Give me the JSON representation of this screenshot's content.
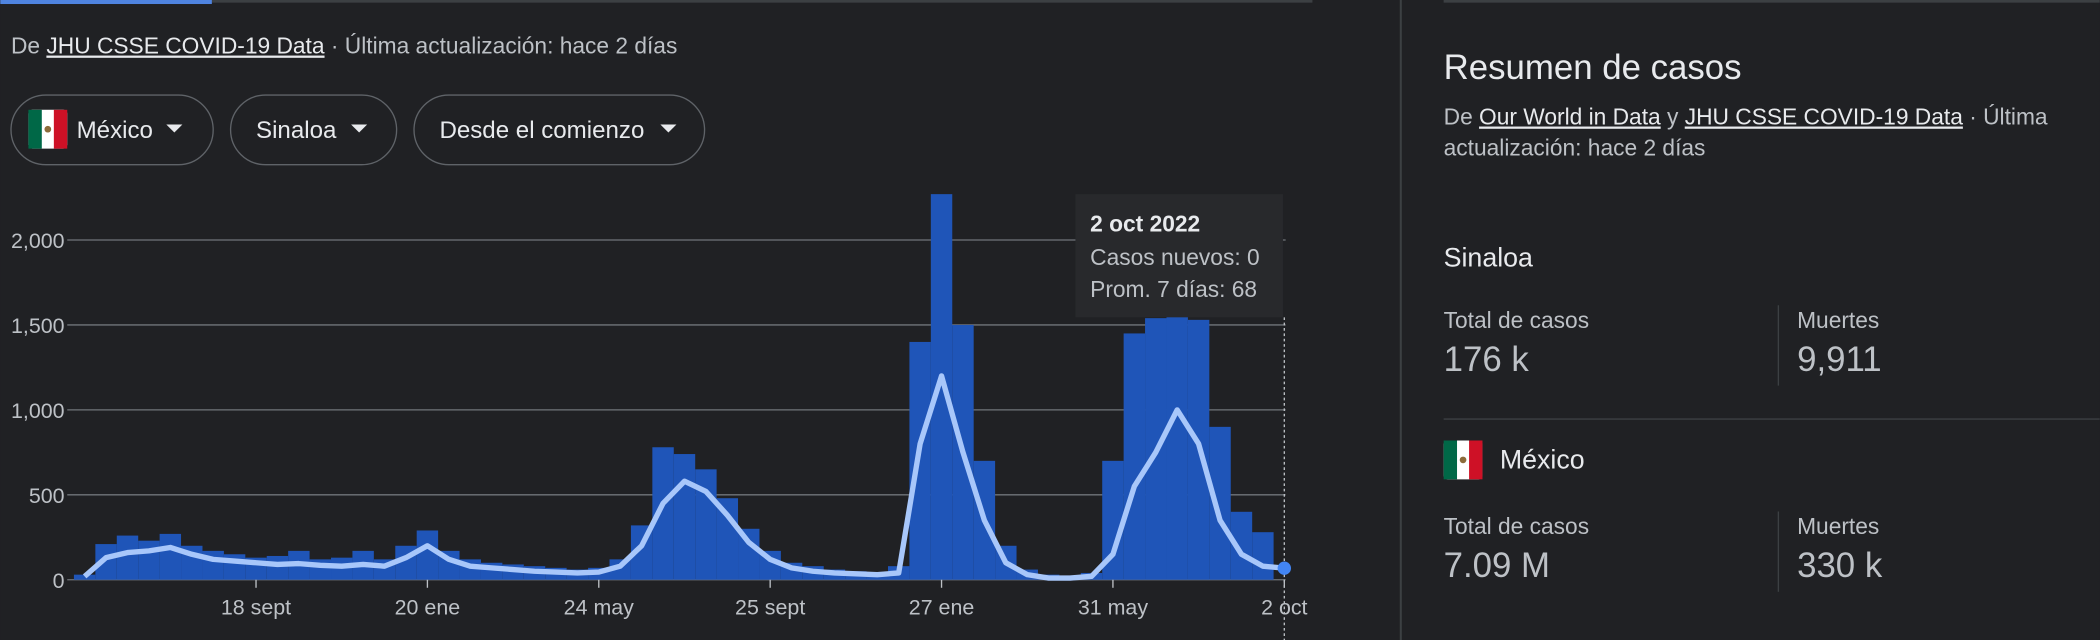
{
  "source": {
    "prefix": "De ",
    "link": "JHU CSSE COVID-19 Data",
    "suffix": " · Última actualización: hace 2 días"
  },
  "filters": [
    "México",
    "Sinaloa",
    "Desde el comienzo"
  ],
  "chart_data": {
    "type": "bar-line",
    "categories": [
      null,
      null,
      null,
      null,
      null,
      null,
      null,
      null,
      "18 sept",
      null,
      null,
      null,
      null,
      null,
      null,
      null,
      "20 ene",
      null,
      null,
      null,
      null,
      null,
      null,
      null,
      "24 may",
      null,
      null,
      null,
      null,
      null,
      null,
      null,
      "25 sept",
      null,
      null,
      null,
      null,
      null,
      null,
      null,
      "27 ene",
      null,
      null,
      null,
      null,
      null,
      null,
      null,
      "31 may",
      null,
      null,
      null,
      null,
      null,
      null,
      null,
      "2 oct"
    ],
    "series": [
      {
        "name": "Casos nuevos",
        "color": "#1f55b8",
        "values": [
          30,
          210,
          260,
          230,
          270,
          200,
          170,
          150,
          130,
          140,
          170,
          120,
          130,
          170,
          120,
          200,
          290,
          170,
          120,
          100,
          90,
          80,
          70,
          60,
          70,
          120,
          320,
          780,
          740,
          650,
          480,
          300,
          170,
          100,
          80,
          60,
          50,
          45,
          80,
          1400,
          2270,
          1500,
          700,
          200,
          60,
          30,
          20,
          40,
          700,
          1450,
          1540,
          1550,
          1530,
          900,
          400,
          280,
          0
        ]
      },
      {
        "name": "Prom. 7 días",
        "color": "#a8c7fa",
        "values": [
          20,
          130,
          160,
          170,
          190,
          150,
          120,
          110,
          100,
          90,
          95,
          85,
          80,
          90,
          80,
          130,
          200,
          120,
          80,
          70,
          60,
          50,
          45,
          40,
          45,
          80,
          200,
          450,
          580,
          520,
          380,
          220,
          120,
          70,
          50,
          40,
          35,
          30,
          40,
          800,
          1200,
          750,
          350,
          100,
          30,
          10,
          10,
          20,
          150,
          550,
          750,
          1000,
          800,
          350,
          150,
          80,
          68
        ]
      }
    ],
    "ylim": [
      0,
      2270
    ],
    "yticks": [
      0,
      500,
      {
        "value": 1000,
        "label": "1,000"
      },
      {
        "value": 1500,
        "label": "1,500"
      },
      {
        "value": 2000,
        "label": "2,000"
      }
    ],
    "grid": true
  },
  "tooltip": {
    "title": "2 oct 2022",
    "lines": [
      "Casos nuevos: 0",
      "Prom. 7 días: 68"
    ]
  },
  "summary": {
    "title": "Resumen de casos",
    "source": {
      "prefix": "De ",
      "link1": "Our World in Data",
      "middle": " y ",
      "link2": "JHU CSSE COVID-19 Data",
      "suffix1": " · Última",
      "suffix2": "actualización: hace 2 días"
    },
    "regions": [
      {
        "name": "Sinaloa",
        "stats": [
          {
            "label": "Total de casos",
            "value": "176 k"
          },
          {
            "label": "Muertes",
            "value": "9,911"
          }
        ]
      },
      {
        "name": "México",
        "stats": [
          {
            "label": "Total de casos",
            "value": "7.09 M"
          },
          {
            "label": "Muertes",
            "value": "330 k"
          }
        ]
      }
    ]
  }
}
